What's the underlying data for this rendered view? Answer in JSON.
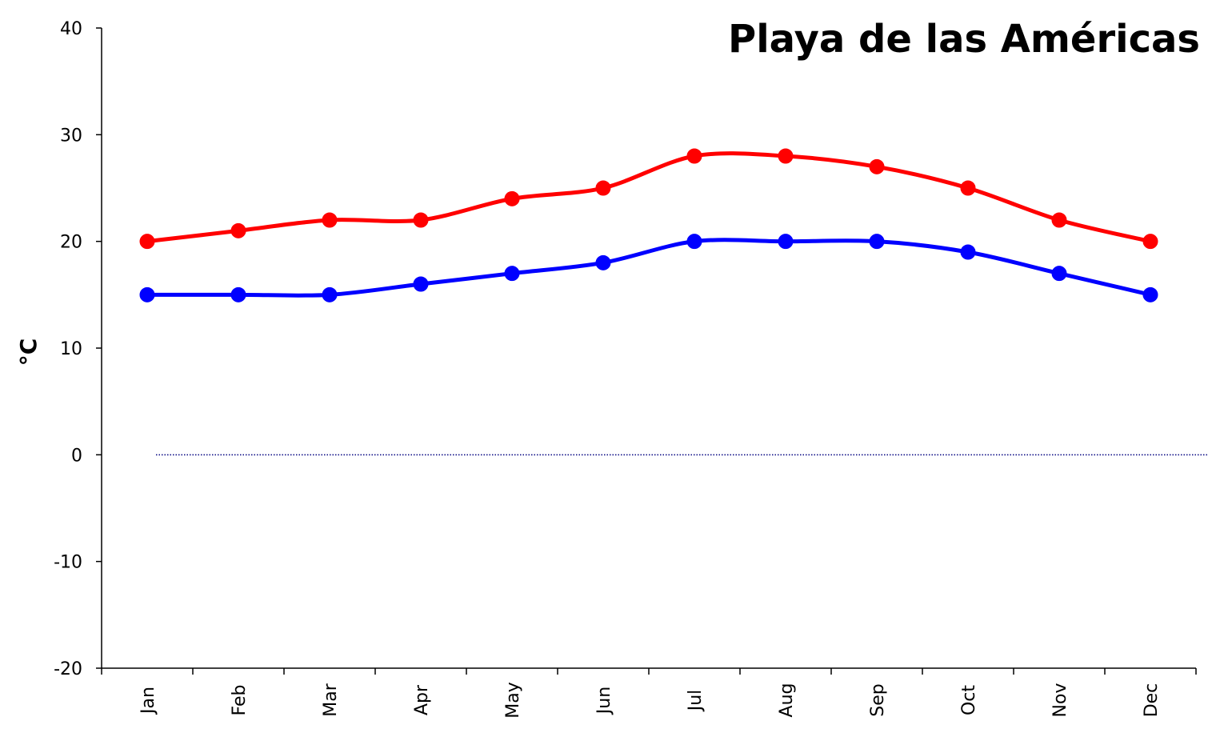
{
  "chart_data": {
    "type": "line",
    "title": "Playa de las Américas",
    "xlabel": "",
    "ylabel": "°C",
    "categories": [
      "Jan",
      "Feb",
      "Mar",
      "Apr",
      "May",
      "Jun",
      "Jul",
      "Aug",
      "Sep",
      "Oct",
      "Nov",
      "Dec"
    ],
    "ylim": [
      -20,
      40
    ],
    "yticks": [
      "40",
      "30",
      "20",
      "10",
      "0",
      "-10",
      "-20"
    ],
    "series": [
      {
        "color": "#ff0000",
        "values": [
          20,
          21,
          22,
          22,
          24,
          25,
          28,
          28,
          27,
          25,
          22,
          20
        ]
      },
      {
        "color": "#0000ff",
        "values": [
          15,
          15,
          15,
          16,
          17,
          18,
          20,
          20,
          20,
          19,
          17,
          15
        ]
      }
    ],
    "zero_line": {
      "style": "dotted",
      "color": "#000080"
    },
    "grid": false,
    "legend": "none"
  }
}
